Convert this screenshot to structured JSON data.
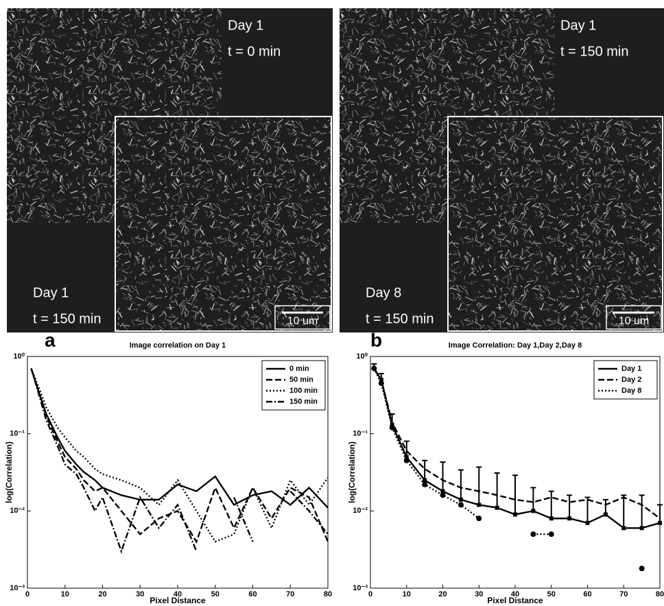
{
  "figures": [
    {
      "day": "Day 1",
      "time": "t = 0 min",
      "day2": "Day 1",
      "time2": "t = 150 min",
      "scale": "10 um"
    },
    {
      "day": "Day 1",
      "time": "t = 150 min",
      "day2": "Day 8",
      "time2": "t = 150 min",
      "scale": "10 um"
    }
  ],
  "chart_data": [
    {
      "type": "line",
      "label": "a",
      "title": "Image correlation on Day 1",
      "x_label": "Pixel Distance",
      "y_label": "log(Correlation)",
      "log_y": true,
      "legend": "upper right",
      "x": [
        1,
        3,
        5,
        8,
        10,
        13,
        15,
        18,
        20,
        25,
        30,
        35,
        40,
        45,
        50,
        55,
        60,
        65,
        70,
        75,
        80
      ],
      "series": [
        {
          "name": "0 min",
          "color": "#000000",
          "dash": "solid",
          "values": [
            0.7,
            0.35,
            0.18,
            0.09,
            0.06,
            0.04,
            0.032,
            0.025,
            0.02,
            0.016,
            0.014,
            0.014,
            0.022,
            0.018,
            0.028,
            0.012,
            0.016,
            0.018,
            0.012,
            0.02,
            0.011
          ]
        },
        {
          "name": "50 min",
          "color": "#000000",
          "dash": "dashed",
          "values": [
            0.7,
            0.35,
            0.17,
            0.08,
            0.05,
            0.035,
            0.025,
            0.018,
            0.02,
            0.01,
            0.005,
            0.008,
            0.01,
            0.004,
            0.02,
            0.006,
            0.02,
            0.008,
            0.02,
            0.015,
            0.004
          ]
        },
        {
          "name": "100 min",
          "color": "#000000",
          "dash": "dotted",
          "values": [
            0.7,
            0.4,
            0.22,
            0.12,
            0.09,
            0.06,
            0.05,
            0.035,
            0.03,
            0.025,
            0.02,
            0.012,
            0.025,
            0.01,
            0.004,
            0.005,
            0.02,
            0.006,
            0.025,
            0.012,
            0.027
          ]
        },
        {
          "name": "150 min",
          "color": "#000000",
          "dash": "dashdot",
          "values": [
            0.7,
            0.33,
            0.15,
            0.07,
            0.04,
            0.03,
            0.02,
            0.01,
            0.015,
            0.003,
            0.015,
            0.006,
            0.012,
            0.003,
            null,
            0.015,
            0.004,
            null,
            0.018,
            0.01,
            0.005
          ]
        }
      ],
      "xlim": [
        0,
        80
      ],
      "xticks": [
        0,
        10,
        20,
        30,
        40,
        50,
        60,
        70,
        80
      ],
      "ylim": [
        0.001,
        1
      ],
      "yticks": [
        {
          "value": 0.001,
          "label": "10⁻³"
        },
        {
          "value": 0.01,
          "label": "10⁻²"
        },
        {
          "value": 0.1,
          "label": "10⁻¹"
        },
        {
          "value": 1,
          "label": "10⁰"
        }
      ]
    },
    {
      "type": "line",
      "label": "b",
      "title": "Image Correlation: Day 1,Day 2,Day 8",
      "x_label": "Pixel Distance",
      "y_label": "log(Correlation)",
      "log_y": true,
      "legend": "upper right",
      "x": [
        1,
        3,
        6,
        10,
        15,
        20,
        25,
        30,
        35,
        40,
        45,
        50,
        55,
        60,
        65,
        70,
        75,
        80
      ],
      "series": [
        {
          "name": "Day 1",
          "color": "#000000",
          "dash": "solid",
          "marker": "square",
          "values": [
            0.7,
            0.5,
            0.13,
            0.05,
            0.025,
            0.018,
            0.014,
            0.012,
            0.011,
            0.009,
            0.01,
            0.008,
            0.008,
            0.007,
            0.009,
            0.006,
            0.006,
            0.007
          ],
          "errors": [
            0.1,
            0.1,
            0.05,
            0.03,
            0.02,
            0.025,
            0.02,
            0.025,
            0.02,
            0.02,
            0.01,
            0.01,
            0.008,
            0.008,
            0.005,
            0.01,
            0.01,
            0.005
          ]
        },
        {
          "name": "Day 2",
          "color": "#000000",
          "dash": "dashed",
          "values": [
            0.7,
            0.5,
            0.14,
            0.06,
            0.035,
            0.025,
            0.02,
            0.018,
            0.016,
            0.014,
            0.013,
            0.015,
            0.013,
            0.014,
            0.012,
            0.015,
            0.012,
            0.008
          ]
        },
        {
          "name": "Day 8",
          "color": "#000000",
          "dash": "dotted",
          "marker": "circle",
          "values": [
            0.7,
            0.45,
            0.12,
            0.045,
            0.022,
            0.016,
            0.012,
            0.008,
            null,
            null,
            0.005,
            0.005,
            null,
            null,
            null,
            null,
            0.0018,
            null
          ]
        }
      ],
      "xlim": [
        0,
        80
      ],
      "xticks": [
        0,
        10,
        20,
        30,
        40,
        50,
        60,
        70,
        80
      ],
      "ylim": [
        0.001,
        1
      ],
      "yticks": [
        {
          "value": 0.001,
          "label": "10⁻³"
        },
        {
          "value": 0.01,
          "label": "10⁻²"
        },
        {
          "value": 0.1,
          "label": "10⁻¹"
        },
        {
          "value": 1,
          "label": "10⁰"
        }
      ]
    }
  ]
}
